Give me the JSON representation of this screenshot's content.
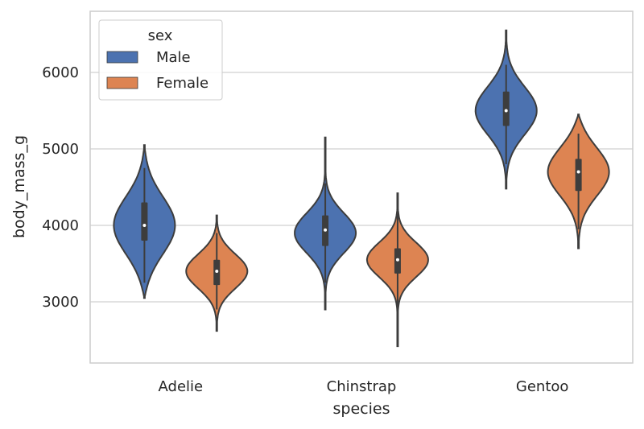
{
  "chart_data": {
    "type": "violin",
    "xlabel": "species",
    "ylabel": "body_mass_g",
    "categories": [
      "Adelie",
      "Chinstrap",
      "Gentoo"
    ],
    "ylim": [
      2200,
      6800
    ],
    "yticks": [
      3000,
      4000,
      5000,
      6000
    ],
    "grid": "horizontal",
    "legend": {
      "title": "sex",
      "placement": "top-left",
      "entries": [
        "Male",
        "Female"
      ]
    },
    "series": [
      {
        "name": "Male",
        "color": "#4c72b0",
        "violins": [
          {
            "min": 3050,
            "max": 5050,
            "q1": 3800,
            "median": 4000,
            "q3": 4300,
            "whisker_low": 3250,
            "whisker_high": 4750,
            "mode": 4000
          },
          {
            "min": 2900,
            "max": 5150,
            "q1": 3730,
            "median": 3940,
            "q3": 4130,
            "whisker_low": 3250,
            "whisker_high": 4550,
            "mode": 3900
          },
          {
            "min": 4480,
            "max": 6550,
            "q1": 5300,
            "median": 5500,
            "q3": 5750,
            "whisker_low": 4800,
            "whisker_high": 6100,
            "mode": 5500
          }
        ]
      },
      {
        "name": "Female",
        "color": "#dd8452",
        "violins": [
          {
            "min": 2620,
            "max": 4130,
            "q1": 3220,
            "median": 3400,
            "q3": 3550,
            "whisker_low": 2900,
            "whisker_high": 3900,
            "mode": 3400
          },
          {
            "min": 2420,
            "max": 4420,
            "q1": 3370,
            "median": 3550,
            "q3": 3700,
            "whisker_low": 2950,
            "whisker_high": 4150,
            "mode": 3550
          },
          {
            "min": 3700,
            "max": 5450,
            "q1": 4450,
            "median": 4700,
            "q3": 4870,
            "whisker_low": 3950,
            "whisker_high": 5200,
            "mode": 4700
          }
        ]
      }
    ]
  }
}
